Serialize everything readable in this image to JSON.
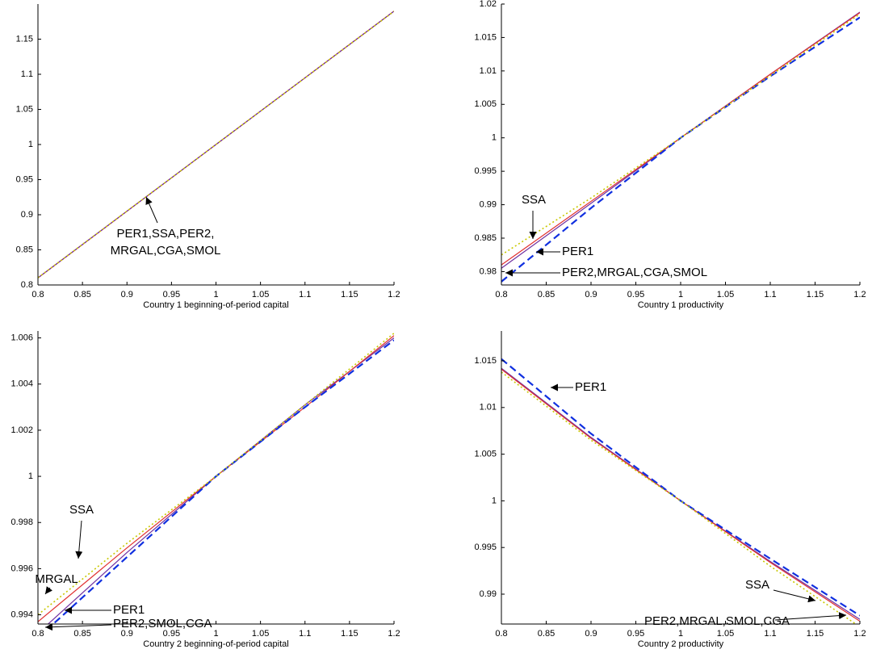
{
  "chart_data": [
    {
      "type": "line",
      "xlabel": "Country 1 beginning-of-period capital",
      "x": [
        0.8,
        0.9,
        1.0,
        1.1,
        1.2
      ],
      "series": [
        {
          "color": "#e03030",
          "style": "solid",
          "values": [
            0.81,
            0.905,
            1.0,
            1.095,
            1.19
          ]
        },
        {
          "color": "#7030a0",
          "style": "solid",
          "values": [
            0.8102,
            0.9051,
            1.0,
            1.0949,
            1.1898
          ]
        },
        {
          "color": "#c8c800",
          "style": "dotted",
          "values": [
            0.8104,
            0.9052,
            1.0,
            1.0948,
            1.1896
          ]
        }
      ],
      "xlim": [
        0.8,
        1.2
      ],
      "ylim": [
        0.8,
        1.2
      ],
      "xticks": [
        0.8,
        0.85,
        0.9,
        0.95,
        1,
        1.05,
        1.1,
        1.15,
        1.2
      ],
      "yticks": [
        0.8,
        0.85,
        0.9,
        0.95,
        1,
        1.05,
        1.1,
        1.15
      ],
      "annotations": [
        "PER1,SSA,PER2,",
        "MRGAL,CGA,SMOL"
      ]
    },
    {
      "type": "line",
      "xlabel": "Country 1 productivity",
      "x": [
        0.8,
        0.9,
        1.0,
        1.1,
        1.2
      ],
      "series": [
        {
          "color": "#7030a0",
          "style": "solid",
          "values": [
            0.9805,
            0.9902,
            1.0,
            1.0095,
            1.0188
          ]
        },
        {
          "color": "#e03030",
          "style": "solid",
          "values": [
            0.981,
            0.9905,
            1.0,
            1.0095,
            1.0187
          ]
        },
        {
          "color": "#1030e0",
          "style": "dashed",
          "values": [
            0.9785,
            0.9895,
            1.0,
            1.0092,
            1.018
          ]
        },
        {
          "color": "#c8c800",
          "style": "dotted",
          "values": [
            0.9825,
            0.991,
            1.0,
            1.0093,
            1.0185
          ]
        }
      ],
      "xlim": [
        0.8,
        1.2
      ],
      "ylim": [
        0.978,
        1.02
      ],
      "xticks": [
        0.8,
        0.85,
        0.9,
        0.95,
        1,
        1.05,
        1.1,
        1.15,
        1.2
      ],
      "yticks": [
        0.98,
        0.985,
        0.99,
        0.995,
        1,
        1.005,
        1.01,
        1.015,
        1.02
      ],
      "annotations": [
        "SSA",
        "PER1",
        "PER2,MRGAL,CGA,SMOL"
      ]
    },
    {
      "type": "line",
      "xlabel": "Country 2 beginning-of-period capital",
      "x": [
        0.8,
        0.9,
        1.0,
        1.1,
        1.2
      ],
      "series": [
        {
          "color": "#7030a0",
          "style": "solid",
          "values": [
            0.9932,
            0.9967,
            1.0,
            1.0031,
            1.006
          ]
        },
        {
          "color": "#e03030",
          "style": "solid",
          "values": [
            0.9937,
            0.9969,
            1.0,
            1.003,
            1.0061
          ]
        },
        {
          "color": "#1030e0",
          "style": "dashed",
          "values": [
            0.993,
            0.9965,
            1.0,
            1.003,
            1.0059
          ]
        },
        {
          "color": "#c8c800",
          "style": "dotted",
          "values": [
            0.994,
            0.9971,
            1.0,
            1.0031,
            1.0062
          ]
        }
      ],
      "xlim": [
        0.8,
        1.2
      ],
      "ylim": [
        0.9936,
        1.0063
      ],
      "xticks": [
        0.8,
        0.85,
        0.9,
        0.95,
        1,
        1.05,
        1.1,
        1.15,
        1.2
      ],
      "yticks": [
        0.994,
        0.996,
        0.998,
        1,
        1.002,
        1.004,
        1.006
      ],
      "annotations": [
        "SSA",
        "MRGAL",
        "PER1",
        "PER2,SMOL,CGA"
      ]
    },
    {
      "type": "line",
      "xlabel": "Country 2 productivity",
      "x": [
        0.8,
        0.9,
        1.0,
        1.1,
        1.2
      ],
      "series": [
        {
          "color": "#7030a0",
          "style": "solid",
          "values": [
            1.0142,
            1.0068,
            1.0,
            0.9935,
            0.9873
          ]
        },
        {
          "color": "#e03030",
          "style": "solid",
          "values": [
            1.0141,
            1.0067,
            1.0,
            0.9934,
            0.9871
          ]
        },
        {
          "color": "#1030e0",
          "style": "dashed",
          "values": [
            1.0152,
            1.0072,
            1.0,
            0.9938,
            0.9877
          ]
        },
        {
          "color": "#c8c800",
          "style": "dotted",
          "values": [
            1.0138,
            1.0065,
            1.0,
            0.993,
            0.9865
          ]
        }
      ],
      "xlim": [
        0.8,
        1.2
      ],
      "ylim": [
        0.9868,
        1.0182
      ],
      "xticks": [
        0.8,
        0.85,
        0.9,
        0.95,
        1,
        1.05,
        1.1,
        1.15,
        1.2
      ],
      "yticks": [
        0.99,
        0.995,
        1,
        1.005,
        1.01,
        1.015
      ],
      "annotations": [
        "PER1",
        "SSA",
        "PER2,MRGAL,SMOL,CGA"
      ]
    }
  ]
}
